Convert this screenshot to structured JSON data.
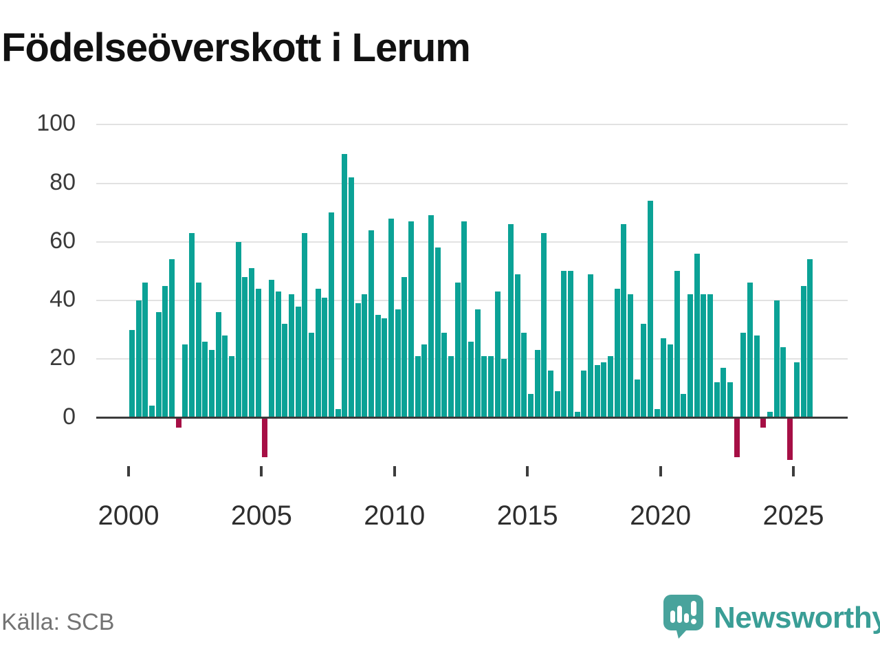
{
  "title": "Födelseöverskott i Lerum",
  "source": "Källa: SCB",
  "logo": {
    "text": "Newsworthy",
    "icon": "newsworthy-speech-bubble-chart-icon"
  },
  "colors": {
    "positive_bar": "#0ba296",
    "negative_bar": "#a60f45",
    "axis": "#3a3a3a",
    "grid": "#e2e2e2",
    "title_text": "#111111",
    "tick_text": "#2e2e2e",
    "source_text": "#737373",
    "logo_teal": "#3a9e96"
  },
  "chart_data": {
    "type": "bar",
    "title": "Födelseöverskott i Lerum",
    "frequency": "quarterly",
    "start_period": "2000-Q1",
    "end_period": "2025-Q3",
    "xlabel": "",
    "ylabel": "",
    "ylim": [
      -20,
      100
    ],
    "grid": "horizontal",
    "legend": "none",
    "y_ticks": [
      0,
      20,
      40,
      60,
      80,
      100
    ],
    "x_tick_labels": [
      "2000",
      "2005",
      "2010",
      "2015",
      "2020",
      "2025"
    ],
    "values": [
      30,
      40,
      46,
      4,
      36,
      45,
      54,
      -3,
      25,
      63,
      46,
      26,
      23,
      36,
      28,
      21,
      60,
      48,
      51,
      44,
      -13,
      47,
      43,
      32,
      42,
      38,
      63,
      29,
      44,
      41,
      70,
      3,
      90,
      82,
      39,
      42,
      64,
      35,
      34,
      68,
      37,
      48,
      67,
      21,
      25,
      69,
      58,
      29,
      21,
      46,
      67,
      26,
      37,
      21,
      21,
      43,
      20,
      66,
      49,
      29,
      8,
      23,
      63,
      16,
      9,
      50,
      50,
      2,
      16,
      49,
      18,
      19,
      21,
      44,
      66,
      42,
      13,
      32,
      74,
      3,
      27,
      25,
      50,
      8,
      42,
      56,
      42,
      42,
      12,
      17,
      12,
      -13,
      29,
      46,
      28,
      -3,
      2,
      40,
      24,
      -14,
      19,
      45,
      54
    ]
  }
}
